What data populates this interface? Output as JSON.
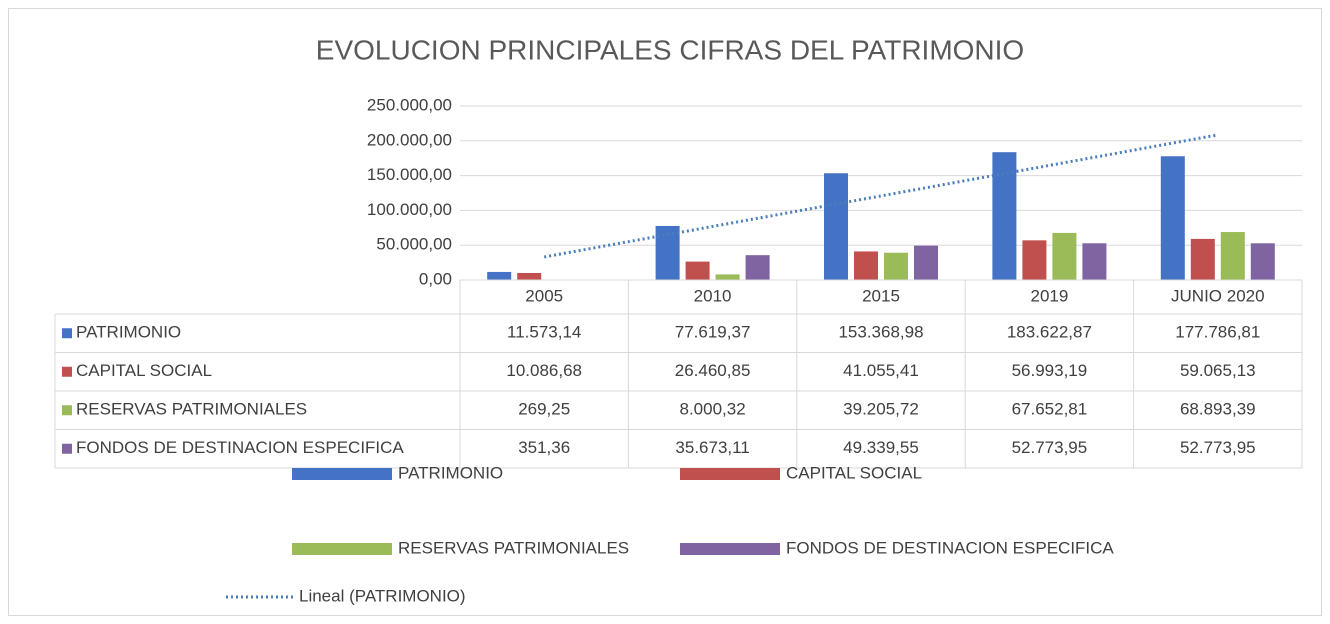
{
  "chart_data": {
    "type": "bar",
    "title": "EVOLUCION PRINCIPALES CIFRAS DEL PATRIMONIO",
    "categories": [
      "2005",
      "2010",
      "2015",
      "2019",
      "JUNIO 2020"
    ],
    "series": [
      {
        "name": "PATRIMONIO",
        "color": "#4472c4",
        "values": [
          11573.14,
          77619.37,
          153368.98,
          183622.87,
          177786.81
        ],
        "value_labels": [
          "11.573,14",
          "77.619,37",
          "153.368,98",
          "183.622,87",
          "177.786,81"
        ]
      },
      {
        "name": "CAPITAL SOCIAL",
        "color": "#c0504d",
        "values": [
          10086.68,
          26460.85,
          41055.41,
          56993.19,
          59065.13
        ],
        "value_labels": [
          "10.086,68",
          "26.460,85",
          "41.055,41",
          "56.993,19",
          "59.065,13"
        ]
      },
      {
        "name": "RESERVAS PATRIMONIALES",
        "color": "#9bbb59",
        "values": [
          269.25,
          8000.32,
          39205.72,
          67652.81,
          68893.39
        ],
        "value_labels": [
          "269,25",
          "8.000,32",
          "39.205,72",
          "67.652,81",
          "68.893,39"
        ]
      },
      {
        "name": "FONDOS DE DESTINACION ESPECIFICA",
        "color": "#8064a2",
        "values": [
          351.36,
          35673.11,
          49339.55,
          52773.95,
          52773.95
        ],
        "value_labels": [
          "351,36",
          "35.673,11",
          "49.339,55",
          "52.773,95",
          "52.773,95"
        ]
      }
    ],
    "trendline": {
      "name": "Lineal (PATRIMONIO)",
      "series": 0,
      "kind": "linear",
      "color": "#4a7ebb"
    },
    "ylim": [
      0,
      250000
    ],
    "yticks": [
      {
        "value": 0,
        "label": "0,00"
      },
      {
        "value": 50000,
        "label": "50.000,00"
      },
      {
        "value": 100000,
        "label": "100.000,00"
      },
      {
        "value": 150000,
        "label": "150.000,00"
      },
      {
        "value": 200000,
        "label": "200.000,00"
      },
      {
        "value": 250000,
        "label": "250.000,00"
      }
    ],
    "grid": true,
    "data_table": true,
    "legend": "bottom"
  }
}
